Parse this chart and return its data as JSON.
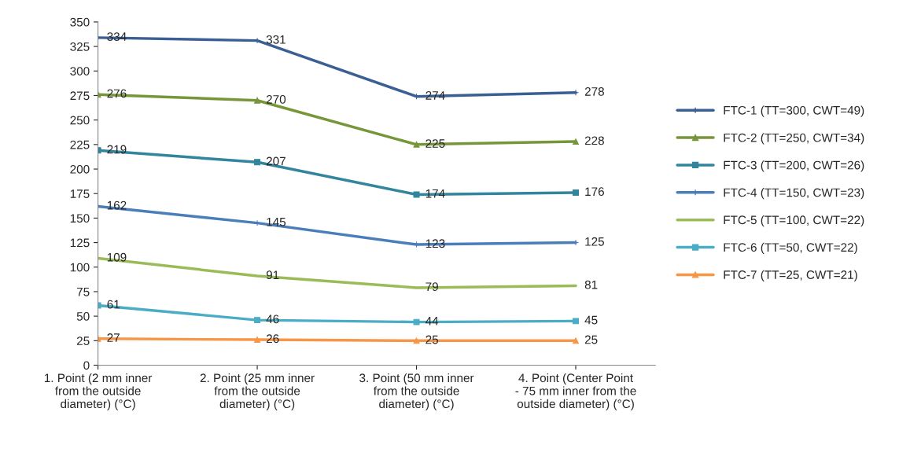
{
  "chart_data": {
    "type": "line",
    "categories": [
      "1. Point (2 mm inner from the outside diameter) (°C)",
      "2. Point (25 mm inner from the outside diameter) (°C)",
      "3. Point (50 mm inner from the outside diameter) (°C)",
      "4. Point (Center Point - 75 mm inner from the outside diameter) (°C)"
    ],
    "series": [
      {
        "name": "FTC-1 (TT=300, CWT=49)",
        "color": "#3a5f94",
        "marker": "cross",
        "values": [
          334,
          331,
          274,
          278
        ]
      },
      {
        "name": "FTC-2 (TT=250, CWT=34)",
        "color": "#77963a",
        "marker": "triangle",
        "values": [
          276,
          270,
          225,
          228
        ]
      },
      {
        "name": "FTC-3 (TT=200, CWT=26)",
        "color": "#31859c",
        "marker": "square",
        "values": [
          219,
          207,
          174,
          176
        ]
      },
      {
        "name": "FTC-4 (TT=150, CWT=23)",
        "color": "#4a7ebb",
        "marker": "cross",
        "values": [
          162,
          145,
          123,
          125
        ]
      },
      {
        "name": "FTC-5 (TT=100, CWT=22)",
        "color": "#9bbb59",
        "marker": "none",
        "values": [
          109,
          91,
          79,
          81
        ]
      },
      {
        "name": "FTC-6 (TT=50, CWT=22)",
        "color": "#4bacc6",
        "marker": "square",
        "values": [
          61,
          46,
          44,
          45
        ]
      },
      {
        "name": "FTC-7 (TT=25, CWT=21)",
        "color": "#f79646",
        "marker": "triangle",
        "values": [
          27,
          26,
          25,
          25
        ]
      }
    ],
    "ylim": [
      0,
      350
    ],
    "yticks": [
      0,
      25,
      50,
      75,
      100,
      125,
      150,
      175,
      200,
      225,
      250,
      275,
      300,
      325,
      350
    ],
    "data_labels": true,
    "legend": "right",
    "grid": false,
    "line_style": "solid"
  }
}
